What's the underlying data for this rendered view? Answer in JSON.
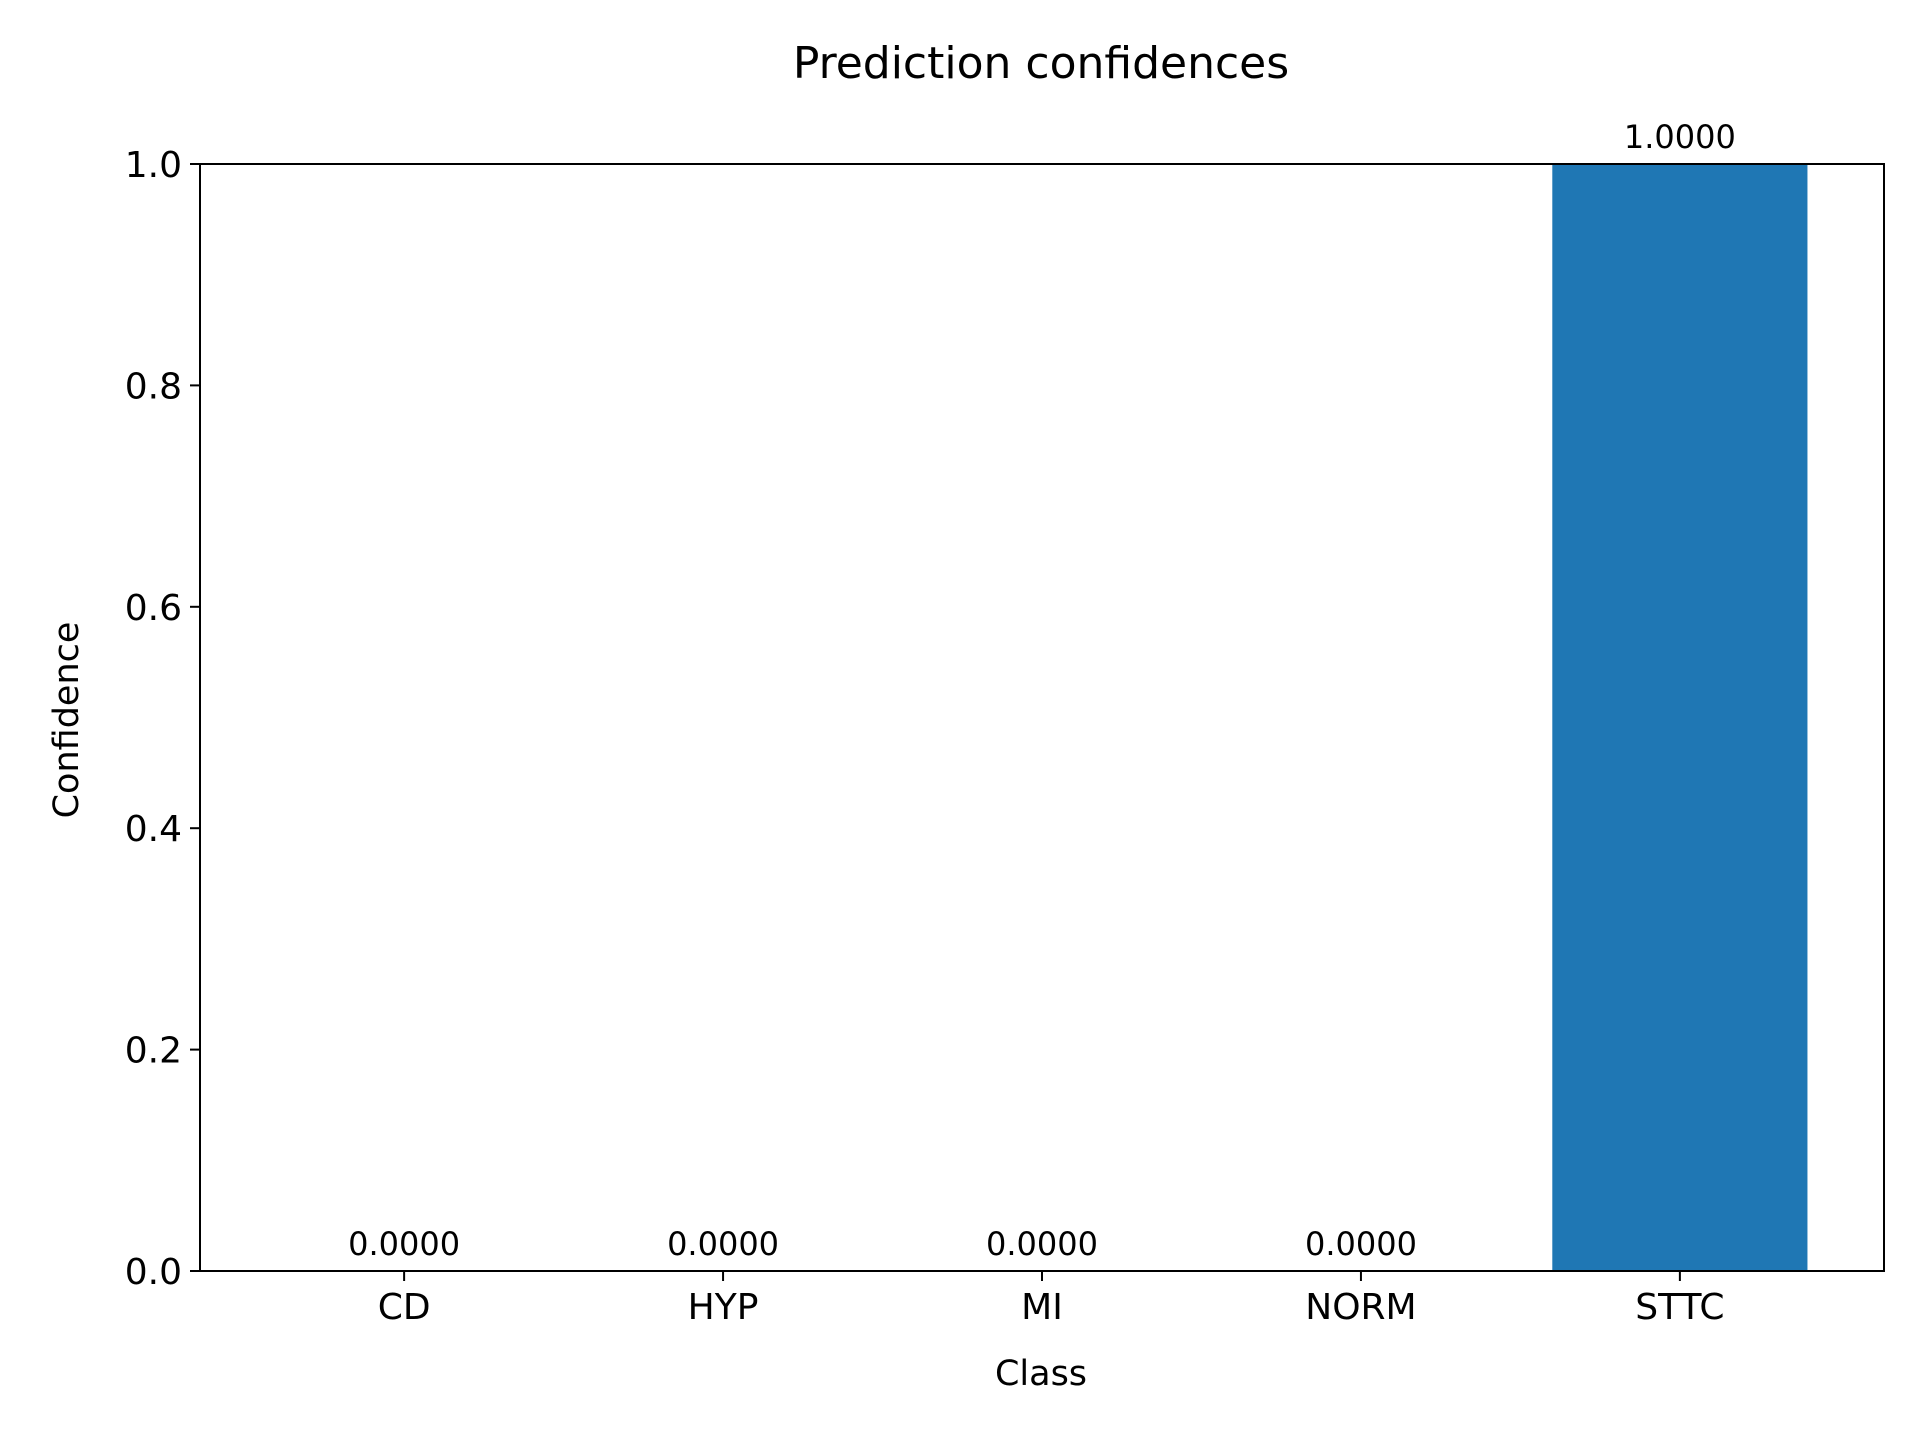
{
  "chart_data": {
    "type": "bar",
    "title": "Prediction confidences",
    "xlabel": "Class",
    "ylabel": "Confidence",
    "categories": [
      "CD",
      "HYP",
      "MI",
      "NORM",
      "STTC"
    ],
    "values": [
      0.0,
      0.0,
      0.0,
      0.0,
      1.0
    ],
    "data_labels": [
      "0.0000",
      "0.0000",
      "0.0000",
      "0.0000",
      "1.0000"
    ],
    "ylim": [
      0,
      1.0
    ],
    "yticks": [
      0.0,
      0.2,
      0.4,
      0.6,
      0.8,
      1.0
    ],
    "ytick_labels": [
      "0.0",
      "0.2",
      "0.4",
      "0.6",
      "0.8",
      "1.0"
    ],
    "grid": false,
    "bar_color": "#1f77b4"
  }
}
